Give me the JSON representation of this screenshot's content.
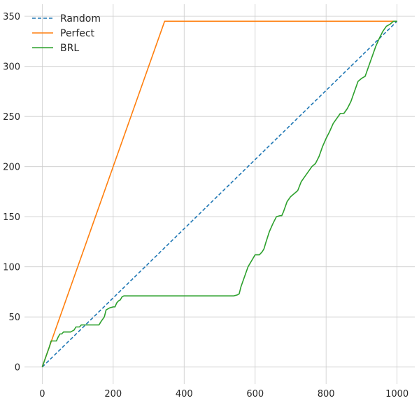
{
  "chart_data": {
    "type": "line",
    "title": "",
    "xlabel": "",
    "ylabel": "",
    "xlim": [
      -50,
      1050
    ],
    "ylim": [
      -17,
      362
    ],
    "xticks": [
      0,
      200,
      400,
      600,
      800,
      1000
    ],
    "yticks": [
      0,
      50,
      100,
      150,
      200,
      250,
      300,
      350
    ],
    "grid": true,
    "legend": "top-left",
    "series": [
      {
        "name": "Random",
        "color": "#1f77b4",
        "dash": "dashed",
        "x": [
          0,
          1000
        ],
        "y": [
          0,
          345
        ]
      },
      {
        "name": "Perfect",
        "color": "#ff7f0e",
        "dash": "solid",
        "x": [
          0,
          345,
          1000
        ],
        "y": [
          0,
          345,
          345
        ]
      },
      {
        "name": "BRL",
        "color": "#2ca02c",
        "dash": "solid",
        "x": [
          0,
          20,
          25,
          40,
          45,
          50,
          55,
          60,
          80,
          90,
          95,
          105,
          110,
          150,
          160,
          165,
          175,
          180,
          190,
          200,
          205,
          210,
          215,
          220,
          225,
          230,
          240,
          300,
          400,
          540,
          550,
          555,
          560,
          580,
          600,
          612,
          620,
          625,
          630,
          640,
          650,
          660,
          670,
          675,
          680,
          690,
          700,
          720,
          730,
          740,
          750,
          760,
          770,
          780,
          790,
          800,
          810,
          820,
          830,
          840,
          850,
          860,
          870,
          880,
          890,
          900,
          910,
          920,
          930,
          940,
          950,
          960,
          970,
          980,
          990,
          1000
        ],
        "y": [
          0,
          20,
          26,
          26,
          30,
          33,
          33,
          35,
          35,
          37,
          40,
          40,
          42,
          42,
          42,
          45,
          50,
          57,
          59,
          60,
          60,
          64,
          66,
          67,
          70,
          71,
          71,
          71,
          71,
          71,
          72,
          73,
          80,
          100,
          112,
          112,
          115,
          118,
          124,
          135,
          143,
          150,
          151,
          151,
          155,
          165,
          170,
          176,
          185,
          190,
          195,
          200,
          203,
          210,
          220,
          228,
          235,
          243,
          248,
          253,
          253,
          258,
          265,
          275,
          285,
          288,
          290,
          300,
          310,
          320,
          328,
          335,
          340,
          342,
          345,
          345
        ]
      }
    ]
  }
}
